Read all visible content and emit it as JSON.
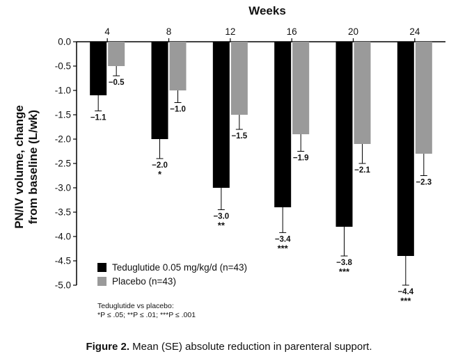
{
  "chart_data": {
    "type": "bar",
    "xlabel": "Weeks",
    "ylabel_line1": "PN/IV volume, change",
    "ylabel_line2": "from baseline (L/wk)",
    "ylim": [
      -5.0,
      0.0
    ],
    "yticks": [
      "0.0",
      "-0.5",
      "-1.0",
      "-1.5",
      "-2.0",
      "-2.5",
      "-3.0",
      "-3.5",
      "-4.0",
      "-4.5",
      "-5.0"
    ],
    "categories": [
      "4",
      "8",
      "12",
      "16",
      "20",
      "24"
    ],
    "series": [
      {
        "name": "Teduglutide 0.05 mg/kg/d (n=43)",
        "color": "#000000",
        "values": [
          -1.1,
          -2.0,
          -3.0,
          -3.4,
          -3.8,
          -4.4
        ],
        "error_low": [
          -1.42,
          -2.4,
          -3.45,
          -3.92,
          -4.4,
          -5.0
        ],
        "value_labels": [
          "−1.1",
          "−2.0",
          "−3.0",
          "−3.4",
          "−3.8",
          "−4.4"
        ],
        "significance": [
          "",
          "*",
          "**",
          "***",
          "***",
          "***"
        ]
      },
      {
        "name": "Placebo (n=43)",
        "color": "#9a9a9a",
        "values": [
          -0.5,
          -1.0,
          -1.5,
          -1.9,
          -2.1,
          -2.3
        ],
        "error_low": [
          -0.7,
          -1.25,
          -1.8,
          -2.25,
          -2.5,
          -2.75
        ],
        "value_labels": [
          "−0.5",
          "−1.0",
          "−1.5",
          "−1.9",
          "−2.1",
          "−2.3"
        ]
      }
    ],
    "legend_position": "bottom-left",
    "grid": false
  },
  "footnote": {
    "line1": "Teduglutide vs placebo:",
    "line2": "*P ≤ .05; **P ≤ .01; ***P ≤ .001"
  },
  "caption": {
    "label": "Figure 2.",
    "text": "Mean (SE) absolute reduction in parenteral support."
  }
}
